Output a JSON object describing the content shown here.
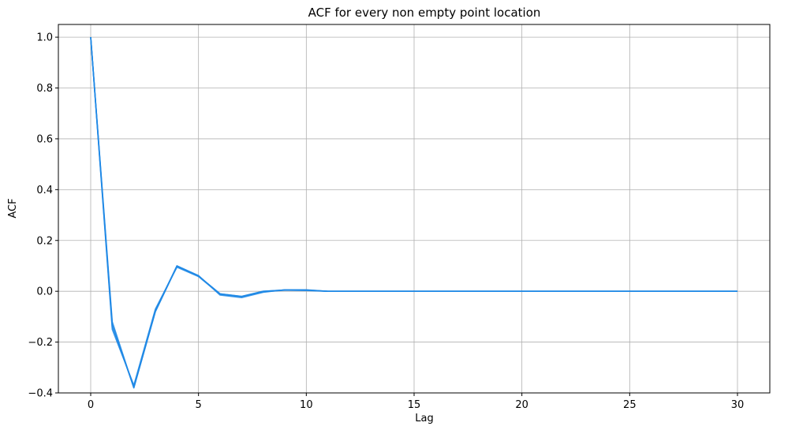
{
  "chart_data": {
    "type": "line",
    "title": "ACF for every non empty point location",
    "xlabel": "Lag",
    "ylabel": "ACF",
    "xlim": [
      -1.5,
      31.5
    ],
    "ylim": [
      -0.4,
      1.05
    ],
    "xticks": [
      0,
      5,
      10,
      15,
      20,
      25,
      30
    ],
    "xtick_labels": [
      "0",
      "5",
      "10",
      "15",
      "20",
      "25",
      "30"
    ],
    "yticks": [
      -0.4,
      -0.2,
      0.0,
      0.2,
      0.4,
      0.6,
      0.8,
      1.0
    ],
    "ytick_labels": [
      "−0.4",
      "−0.2",
      "0.0",
      "0.2",
      "0.4",
      "0.6",
      "0.8",
      "1.0"
    ],
    "grid": true,
    "line_color": "#1e88e5",
    "x": [
      0,
      1,
      2,
      3,
      4,
      5,
      6,
      7,
      8,
      9,
      10,
      11,
      12,
      13,
      14,
      15,
      16,
      17,
      18,
      19,
      20,
      21,
      22,
      23,
      24,
      25,
      26,
      27,
      28,
      29,
      30
    ],
    "series": [
      {
        "values": [
          1.0,
          -0.13,
          -0.38,
          -0.08,
          0.1,
          0.06,
          -0.01,
          -0.02,
          0.0,
          0.005,
          0.005,
          0.0,
          0.0,
          0.0,
          0.0,
          0.0,
          0.0,
          0.0,
          0.0,
          0.0,
          0.0,
          0.0,
          0.0,
          0.0,
          0.0,
          0.0,
          0.0,
          0.0,
          0.0,
          0.0,
          0.0
        ]
      },
      {
        "values": [
          1.0,
          -0.15,
          -0.37,
          -0.07,
          0.095,
          0.058,
          -0.012,
          -0.022,
          -0.002,
          0.004,
          0.004,
          0.0,
          0.0,
          0.0,
          0.0,
          0.0,
          0.0,
          0.0,
          0.0,
          0.0,
          0.0,
          0.0,
          0.0,
          0.0,
          0.0,
          0.0,
          0.0,
          0.0,
          0.0,
          0.0,
          0.0
        ]
      },
      {
        "values": [
          1.0,
          -0.14,
          -0.375,
          -0.075,
          0.1,
          0.062,
          -0.015,
          -0.025,
          -0.004,
          0.006,
          0.006,
          0.0,
          0.0,
          0.0,
          0.0,
          0.0,
          0.0,
          0.0,
          0.0,
          0.0,
          0.0,
          0.0,
          0.0,
          0.0,
          0.0,
          0.0,
          0.0,
          0.0,
          0.0,
          0.0,
          0.0
        ]
      },
      {
        "values": [
          1.0,
          -0.12,
          -0.38,
          -0.08,
          0.098,
          0.06,
          -0.01,
          -0.02,
          0.0,
          0.005,
          0.003,
          0.0,
          0.0,
          0.0,
          0.0,
          0.0,
          0.0,
          0.0,
          0.0,
          0.0,
          0.0,
          0.0,
          0.0,
          0.0,
          0.0,
          0.0,
          0.0,
          0.0,
          0.0,
          0.0,
          0.0
        ]
      }
    ]
  }
}
